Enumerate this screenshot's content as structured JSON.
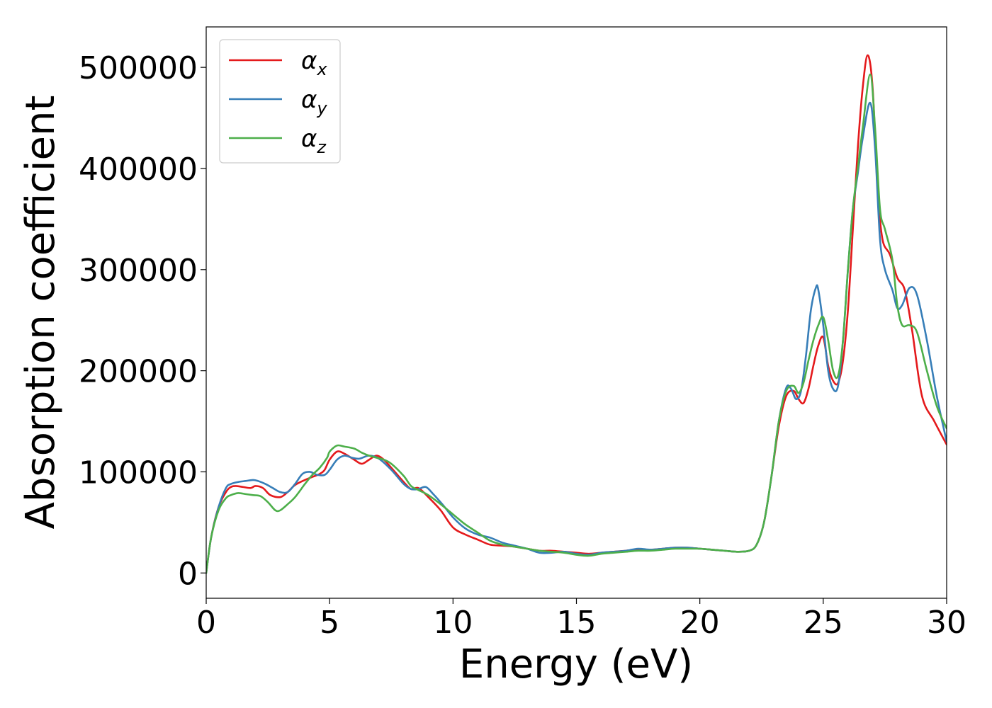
{
  "chart_data": {
    "type": "line",
    "title": "",
    "xlabel": "Energy (eV)",
    "ylabel": "Absorption coefficient",
    "xlim": [
      0,
      30
    ],
    "ylim": [
      -25000,
      540000
    ],
    "xticks": [
      0,
      5,
      10,
      15,
      20,
      25,
      30
    ],
    "xtick_labels": [
      "0",
      "5",
      "10",
      "15",
      "20",
      "25",
      "30"
    ],
    "yticks": [
      0,
      100000,
      200000,
      300000,
      400000,
      500000
    ],
    "ytick_labels": [
      "0",
      "100000",
      "200000",
      "300000",
      "400000",
      "500000"
    ],
    "grid": false,
    "legend_position": "top-left",
    "series": [
      {
        "name": "α",
        "subscript": "x",
        "color": "#e41a1c",
        "x": [
          0,
          0.2,
          0.5,
          0.8,
          1.0,
          1.2,
          1.5,
          1.8,
          2.0,
          2.3,
          2.6,
          3.0,
          3.3,
          3.6,
          4.0,
          4.3,
          4.6,
          4.8,
          5.0,
          5.3,
          5.6,
          6.0,
          6.3,
          6.6,
          6.9,
          7.2,
          7.5,
          8.0,
          8.3,
          8.6,
          9.0,
          9.5,
          10.0,
          10.5,
          11.0,
          11.5,
          12.0,
          12.5,
          13.0,
          13.5,
          14.0,
          14.5,
          15.0,
          15.5,
          16.0,
          16.5,
          17.0,
          17.5,
          18.0,
          18.5,
          19.0,
          19.5,
          20.0,
          20.5,
          21.0,
          21.5,
          22.0,
          22.3,
          22.6,
          22.9,
          23.2,
          23.5,
          23.8,
          24.0,
          24.2,
          24.4,
          24.6,
          24.8,
          25.0,
          25.2,
          25.4,
          25.6,
          25.8,
          26.0,
          26.2,
          26.4,
          26.6,
          26.8,
          27.0,
          27.2,
          27.4,
          27.7,
          28.0,
          28.3,
          28.6,
          29.0,
          29.5,
          30.0
        ],
        "values": [
          0,
          35000,
          65000,
          80000,
          85000,
          86000,
          85000,
          84000,
          86000,
          84000,
          77000,
          75000,
          80000,
          87000,
          92000,
          95000,
          98000,
          102000,
          112000,
          120000,
          118000,
          112000,
          108000,
          112000,
          116000,
          112000,
          104000,
          90000,
          83000,
          84000,
          75000,
          62000,
          45000,
          38000,
          33000,
          28000,
          27000,
          26000,
          24000,
          22000,
          22000,
          21000,
          20000,
          19000,
          20000,
          21000,
          22000,
          23000,
          23000,
          24000,
          25000,
          25000,
          24000,
          23000,
          22000,
          21000,
          22000,
          28000,
          50000,
          95000,
          145000,
          175000,
          180000,
          172000,
          168000,
          182000,
          205000,
          225000,
          233000,
          205000,
          190000,
          188000,
          210000,
          260000,
          340000,
          420000,
          480000,
          512000,
          480000,
          380000,
          330000,
          315000,
          292000,
          280000,
          240000,
          175000,
          150000,
          127000
        ]
      },
      {
        "name": "α",
        "subscript": "y",
        "color": "#377eb8",
        "x": [
          0,
          0.2,
          0.5,
          0.8,
          1.0,
          1.3,
          1.6,
          1.9,
          2.1,
          2.4,
          2.7,
          3.0,
          3.3,
          3.6,
          3.9,
          4.2,
          4.5,
          4.8,
          5.0,
          5.3,
          5.6,
          5.9,
          6.2,
          6.6,
          7.0,
          7.5,
          8.0,
          8.3,
          8.6,
          8.9,
          9.2,
          9.6,
          10.0,
          10.5,
          11.0,
          11.5,
          12.0,
          12.5,
          13.0,
          13.5,
          14.0,
          14.5,
          15.0,
          15.5,
          16.0,
          16.5,
          17.0,
          17.5,
          18.0,
          18.5,
          19.0,
          19.5,
          20.0,
          20.5,
          21.0,
          21.5,
          22.0,
          22.3,
          22.6,
          22.9,
          23.2,
          23.5,
          23.7,
          23.9,
          24.1,
          24.3,
          24.5,
          24.7,
          24.8,
          25.0,
          25.2,
          25.4,
          25.6,
          25.8,
          26.0,
          26.2,
          26.4,
          26.6,
          26.9,
          27.1,
          27.3,
          27.5,
          27.8,
          28.0,
          28.2,
          28.5,
          28.8,
          29.2,
          29.6,
          30.0
        ],
        "values": [
          0,
          35000,
          65000,
          84000,
          88000,
          90000,
          91000,
          92000,
          91000,
          88000,
          84000,
          80000,
          80000,
          88000,
          98000,
          100000,
          97000,
          97000,
          102000,
          112000,
          116000,
          114000,
          113000,
          116000,
          113000,
          102000,
          88000,
          83000,
          83000,
          85000,
          78000,
          67000,
          55000,
          44000,
          38000,
          35000,
          30000,
          27000,
          24000,
          20000,
          20000,
          21000,
          19000,
          18000,
          20000,
          21000,
          22000,
          24000,
          23000,
          24000,
          25000,
          25000,
          24000,
          23000,
          22000,
          21000,
          22000,
          28000,
          50000,
          95000,
          150000,
          183000,
          182000,
          172000,
          180000,
          215000,
          260000,
          282000,
          280000,
          245000,
          200000,
          182000,
          185000,
          230000,
          300000,
          360000,
          395000,
          430000,
          465000,
          420000,
          330000,
          300000,
          280000,
          262000,
          265000,
          282000,
          275000,
          230000,
          175000,
          130000
        ]
      },
      {
        "name": "α",
        "subscript": "z",
        "color": "#4daf4a",
        "x": [
          0,
          0.2,
          0.5,
          0.8,
          1.0,
          1.3,
          1.6,
          1.9,
          2.2,
          2.5,
          2.8,
          3.0,
          3.3,
          3.6,
          4.0,
          4.3,
          4.6,
          4.9,
          5.0,
          5.3,
          5.6,
          6.0,
          6.3,
          6.6,
          6.9,
          7.2,
          7.5,
          8.0,
          8.3,
          8.6,
          9.0,
          9.5,
          10.0,
          10.5,
          11.0,
          11.5,
          12.0,
          12.5,
          13.0,
          13.5,
          14.0,
          14.5,
          15.0,
          15.5,
          16.0,
          16.5,
          17.0,
          17.5,
          18.0,
          18.5,
          19.0,
          19.5,
          20.0,
          20.5,
          21.0,
          21.5,
          22.0,
          22.3,
          22.6,
          22.9,
          23.2,
          23.5,
          23.8,
          24.0,
          24.2,
          24.4,
          24.6,
          24.8,
          25.0,
          25.2,
          25.4,
          25.6,
          25.8,
          26.0,
          26.2,
          26.4,
          26.6,
          26.9,
          27.1,
          27.3,
          27.5,
          27.8,
          28.0,
          28.2,
          28.5,
          28.8,
          29.2,
          29.6,
          30.0
        ],
        "values": [
          0,
          35000,
          62000,
          74000,
          77000,
          79000,
          78000,
          77000,
          76000,
          70000,
          62000,
          62000,
          68000,
          75000,
          88000,
          97000,
          104000,
          114000,
          120000,
          126000,
          125000,
          123000,
          119000,
          116000,
          114000,
          112000,
          108000,
          96000,
          86000,
          82000,
          77000,
          68000,
          58000,
          48000,
          40000,
          32000,
          28000,
          26000,
          24000,
          22000,
          21000,
          20000,
          18000,
          17000,
          19000,
          20000,
          21000,
          22000,
          22000,
          23000,
          24000,
          24000,
          24000,
          23000,
          22000,
          21000,
          22000,
          28000,
          50000,
          95000,
          150000,
          180000,
          185000,
          178000,
          188000,
          210000,
          230000,
          245000,
          253000,
          230000,
          200000,
          195000,
          230000,
          300000,
          360000,
          400000,
          440000,
          493000,
          440000,
          360000,
          340000,
          310000,
          265000,
          245000,
          245000,
          238000,
          200000,
          165000,
          143000
        ]
      }
    ]
  }
}
